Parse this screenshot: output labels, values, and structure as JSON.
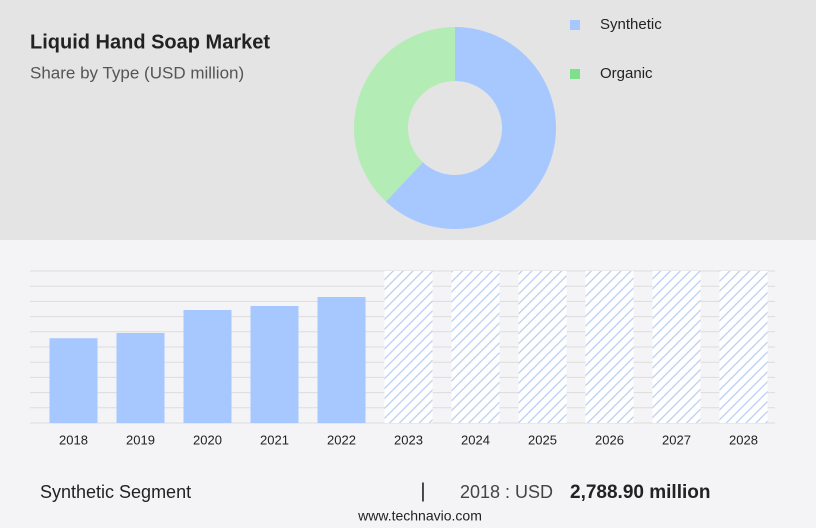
{
  "header": {
    "title": "Liquid Hand Soap Market",
    "subtitle": "Share by Type (USD million)"
  },
  "chart_data": [
    {
      "type": "donut",
      "categories": [
        "Synthetic",
        "Organic"
      ],
      "values": [
        62,
        38
      ],
      "colors": [
        "#a6c8ff",
        "#b4ecb6"
      ],
      "legend_colors": [
        "#a6c8ff",
        "#7fe08c"
      ]
    },
    {
      "type": "bar",
      "categories": [
        "2018",
        "2019",
        "2020",
        "2021",
        "2022",
        "2023",
        "2024",
        "2025",
        "2026",
        "2027",
        "2028"
      ],
      "values": [
        2788.9,
        2961,
        3717,
        3849,
        4145,
        null,
        null,
        null,
        null,
        null,
        null
      ],
      "color": "#a6c8ff",
      "forecast_color": "#b9cdf3",
      "ylim": [
        0,
        5000
      ],
      "yticks": [
        0,
        500,
        1000,
        1500,
        2000,
        2500,
        3000,
        3500,
        4000,
        4500,
        5000
      ],
      "grid": true,
      "show_tick_labels": false
    }
  ],
  "footer": {
    "segment": "Synthetic Segment",
    "separator": "|",
    "year_label": "2018 : USD",
    "value": "2,788.90 million",
    "source": "www.technavio.com"
  }
}
